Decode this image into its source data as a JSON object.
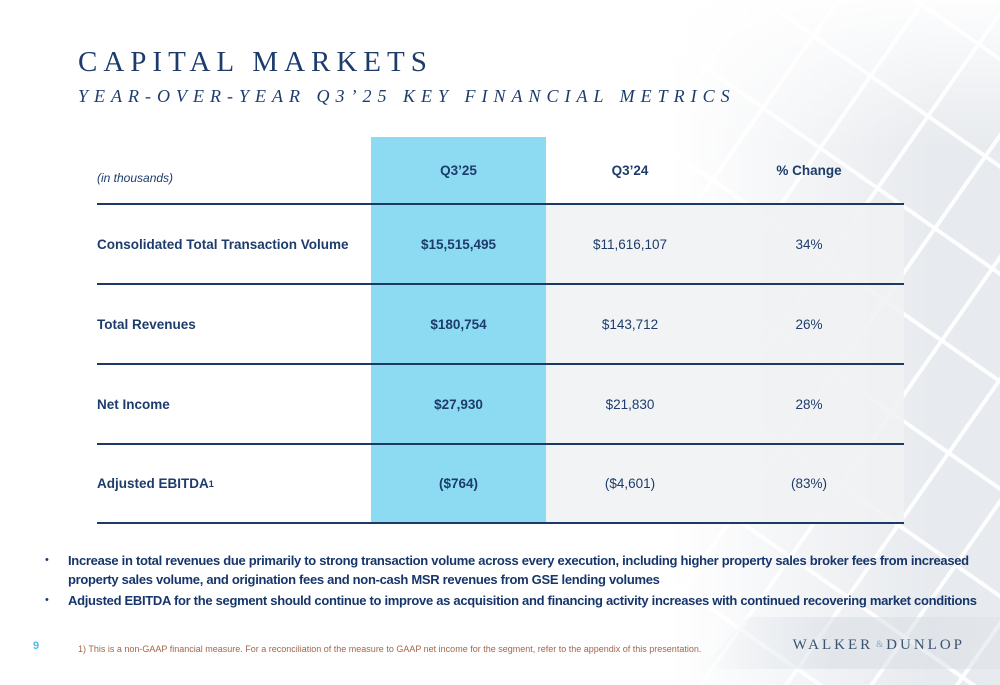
{
  "header": {
    "title": "CAPITAL MARKETS",
    "subtitle": "YEAR-OVER-YEAR Q3’25 KEY FINANCIAL METRICS"
  },
  "table": {
    "unit_label": "(in thousands)",
    "columns": [
      "Q3’25",
      "Q3’24",
      "% Change"
    ],
    "rows": [
      {
        "label": "Consolidated Total Transaction Volume",
        "sup": "",
        "q3_25": "$15,515,495",
        "q3_24": "$11,616,107",
        "change": "34%"
      },
      {
        "label": "Total Revenues",
        "sup": "",
        "q3_25": "$180,754",
        "q3_24": "$143,712",
        "change": "26%"
      },
      {
        "label": "Net Income",
        "sup": "",
        "q3_25": "$27,930",
        "q3_24": "$21,830",
        "change": "28%"
      },
      {
        "label": "Adjusted EBITDA",
        "sup": "1",
        "q3_25": "($764)",
        "q3_24": "($4,601)",
        "change": "(83%)"
      }
    ]
  },
  "bullets": {
    "marker": "•",
    "items": [
      "Increase in total revenues due primarily to strong transaction volume across every execution, including higher property sales broker fees from increased property sales volume, and origination fees and non-cash MSR revenues from GSE lending volumes",
      "Adjusted EBITDA for the segment should continue to improve as acquisition and financing activity increases with continued recovering market conditions"
    ]
  },
  "footer": {
    "page_number": "9",
    "footnote": "1) This is a non-GAAP financial measure. For a reconciliation of the measure to GAAP net income for the segment, refer to the appendix of this presentation.",
    "logo": {
      "walker": "WALKER",
      "ampersand": "&",
      "dunlop": "DUNLOP"
    }
  },
  "colors": {
    "navy_text": "#1d3c6c",
    "highlight_blue": "#8cdbf2",
    "cell_gray": "#f0f1f3",
    "row_line_navy": "#1c3a66",
    "footnote_brown": "#a2664a",
    "page_number_cyan": "#49bfe8",
    "logo_navy": "#3a536f",
    "logo_amp_blue": "#8aa9c4"
  }
}
